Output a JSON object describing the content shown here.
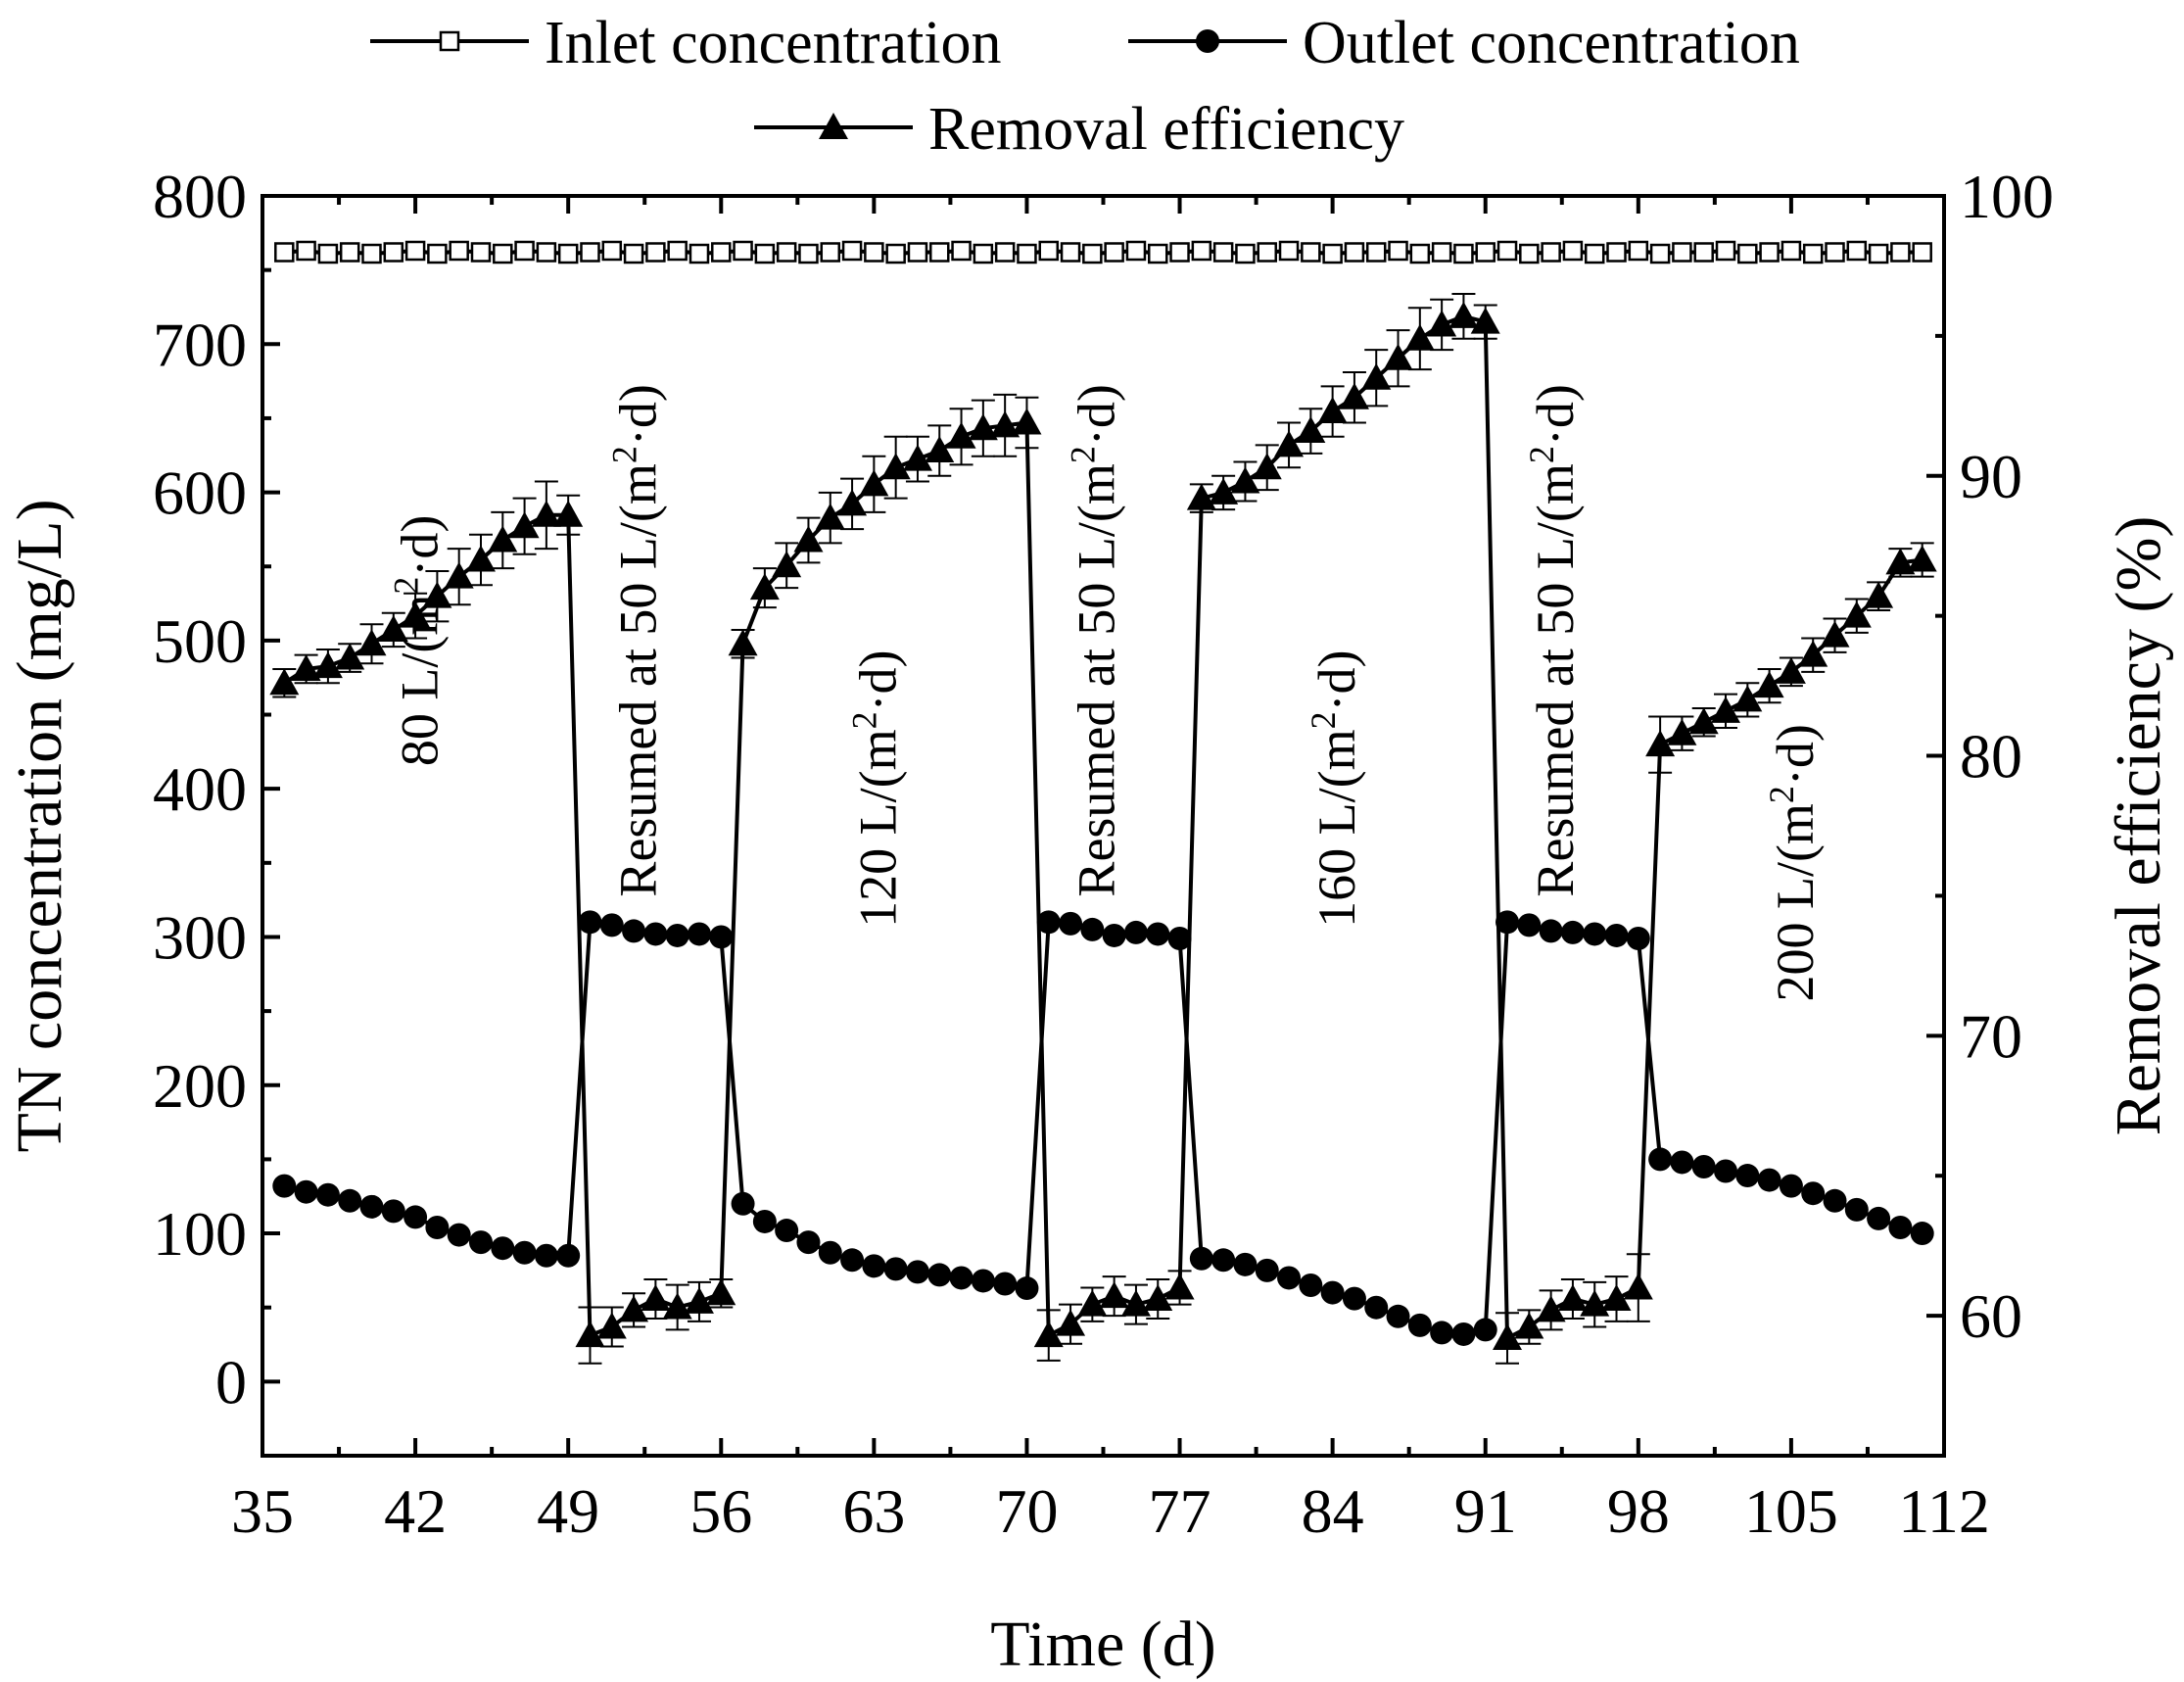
{
  "chart_data": {
    "type": "line",
    "title": "",
    "xlabel": "Time (d)",
    "ylabel": "TN concentration (mg/L)",
    "y2label": "Removal efficiency (%)",
    "xlim": [
      35,
      112
    ],
    "ylim": [
      -50,
      800
    ],
    "y2lim": [
      55,
      100
    ],
    "xticks": [
      35,
      42,
      49,
      56,
      63,
      70,
      77,
      84,
      91,
      98,
      105,
      112
    ],
    "yticks": [
      0,
      100,
      200,
      300,
      400,
      500,
      600,
      700,
      800
    ],
    "y2ticks": [
      60,
      70,
      80,
      90,
      100
    ],
    "legend": [
      {
        "name": "Inlet concentration",
        "marker": "open-square"
      },
      {
        "name": "Outlet concentration",
        "marker": "filled-circle"
      },
      {
        "name": "Removal efficiency",
        "marker": "filled-triangle"
      }
    ],
    "annotations": [
      {
        "text": "80 L/(m",
        "sup": "2",
        "tail": "·d)",
        "x": 43,
        "y": 500
      },
      {
        "text": "Resumed at 50 L/(m",
        "sup": "2",
        "tail": "·d)",
        "x": 53,
        "y": 500
      },
      {
        "text": "120 L/(m",
        "sup": "2",
        "tail": "·d)",
        "x": 64,
        "y": 400
      },
      {
        "text": "Resumed at 50 L/(m",
        "sup": "2",
        "tail": "·d)",
        "x": 74,
        "y": 500
      },
      {
        "text": "160 L/(m",
        "sup": "2",
        "tail": "·d)",
        "x": 85,
        "y": 400
      },
      {
        "text": "Resumed at 50 L/(m",
        "sup": "2",
        "tail": "·d)",
        "x": 95,
        "y": 500
      },
      {
        "text": "200 L/(m",
        "sup": "2",
        "tail": "·d)",
        "x": 106,
        "y": 350
      }
    ],
    "series": [
      {
        "name": "Inlet concentration",
        "axis": "left",
        "x": [
          36,
          37,
          38,
          39,
          40,
          41,
          42,
          43,
          44,
          45,
          46,
          47,
          48,
          49,
          50,
          51,
          52,
          53,
          54,
          55,
          56,
          57,
          58,
          59,
          60,
          61,
          62,
          63,
          64,
          65,
          66,
          67,
          68,
          69,
          70,
          71,
          72,
          73,
          74,
          75,
          76,
          77,
          78,
          79,
          80,
          81,
          82,
          83,
          84,
          85,
          86,
          87,
          88,
          89,
          90,
          91,
          92,
          93,
          94,
          95,
          96,
          97,
          98,
          99,
          100,
          101,
          102,
          103,
          104,
          105,
          106,
          107,
          108,
          109,
          110,
          111
        ],
        "y": [
          762,
          763,
          761,
          762,
          761,
          762,
          763,
          761,
          763,
          762,
          761,
          763,
          762,
          761,
          762,
          763,
          761,
          762,
          763,
          761,
          762,
          763,
          761,
          762,
          761,
          762,
          763,
          762,
          761,
          762,
          762,
          763,
          761,
          762,
          761,
          763,
          762,
          761,
          762,
          763,
          761,
          762,
          763,
          762,
          761,
          762,
          763,
          762,
          761,
          762,
          762,
          763,
          761,
          762,
          761,
          762,
          763,
          761,
          762,
          763,
          761,
          762,
          763,
          761,
          762,
          762,
          763,
          761,
          762,
          763,
          761,
          762,
          763,
          761,
          762,
          762
        ]
      },
      {
        "name": "Outlet concentration",
        "axis": "left",
        "x": [
          36,
          37,
          38,
          39,
          40,
          41,
          42,
          43,
          44,
          45,
          46,
          47,
          48,
          49,
          50,
          51,
          52,
          53,
          54,
          55,
          56,
          57,
          58,
          59,
          60,
          61,
          62,
          63,
          64,
          65,
          66,
          67,
          68,
          69,
          70,
          71,
          72,
          73,
          74,
          75,
          76,
          77,
          78,
          79,
          80,
          81,
          82,
          83,
          84,
          85,
          86,
          87,
          88,
          89,
          90,
          91,
          92,
          93,
          94,
          95,
          96,
          97,
          98,
          99,
          100,
          101,
          102,
          103,
          104,
          105,
          106,
          107,
          108,
          109,
          110,
          111
        ],
        "y": [
          132,
          128,
          126,
          122,
          118,
          115,
          111,
          104,
          99,
          94,
          90,
          87,
          85,
          85,
          310,
          308,
          304,
          302,
          301,
          302,
          300,
          120,
          108,
          102,
          94,
          87,
          82,
          78,
          76,
          74,
          72,
          70,
          68,
          66,
          63,
          310,
          309,
          305,
          301,
          303,
          302,
          299,
          83,
          82,
          79,
          75,
          70,
          65,
          60,
          56,
          50,
          44,
          38,
          33,
          32,
          35,
          310,
          308,
          304,
          303,
          302,
          301,
          299,
          150,
          148,
          145,
          142,
          139,
          136,
          132,
          127,
          122,
          116,
          110,
          104,
          100
        ],
        "err": [
          0,
          0,
          0,
          0,
          0,
          0,
          0,
          0,
          0,
          0,
          0,
          0,
          0,
          0,
          0,
          0,
          0,
          0,
          0,
          0,
          0,
          0,
          0,
          0,
          0,
          0,
          0,
          0,
          0,
          0,
          0,
          0,
          0,
          0,
          0,
          0,
          0,
          0,
          0,
          0,
          0,
          0,
          0,
          0,
          0,
          0,
          0,
          0,
          0,
          0,
          0,
          0,
          0,
          0,
          0,
          0,
          0,
          0,
          0,
          0,
          0,
          0,
          0,
          0,
          0,
          0,
          0,
          0,
          0,
          0,
          0,
          0,
          0,
          0,
          0,
          0
        ]
      },
      {
        "name": "Removal efficiency",
        "axis": "right",
        "x": [
          36,
          37,
          38,
          39,
          40,
          41,
          42,
          43,
          44,
          45,
          46,
          47,
          48,
          49,
          50,
          51,
          52,
          53,
          54,
          55,
          56,
          57,
          58,
          59,
          60,
          61,
          62,
          63,
          64,
          65,
          66,
          67,
          68,
          69,
          70,
          71,
          72,
          73,
          74,
          75,
          76,
          77,
          78,
          79,
          80,
          81,
          82,
          83,
          84,
          85,
          86,
          87,
          88,
          89,
          90,
          91,
          92,
          93,
          94,
          95,
          96,
          97,
          98,
          99,
          100,
          101,
          102,
          103,
          104,
          105,
          106,
          107,
          108,
          109,
          110,
          111
        ],
        "y": [
          82.6,
          83.1,
          83.2,
          83.5,
          84.0,
          84.5,
          85.0,
          85.7,
          86.4,
          87.0,
          87.7,
          88.2,
          88.6,
          88.6,
          59.3,
          59.6,
          60.2,
          60.6,
          60.3,
          60.5,
          60.8,
          84.0,
          86.0,
          86.8,
          87.7,
          88.5,
          89.0,
          89.7,
          90.3,
          90.6,
          90.9,
          91.4,
          91.7,
          91.8,
          91.9,
          59.3,
          59.7,
          60.4,
          60.7,
          60.4,
          60.6,
          61.0,
          89.2,
          89.4,
          89.8,
          90.3,
          91.1,
          91.6,
          92.3,
          92.8,
          93.5,
          94.2,
          94.9,
          95.4,
          95.7,
          95.5,
          59.2,
          59.6,
          60.2,
          60.6,
          60.4,
          60.6,
          61.0,
          80.4,
          80.8,
          81.2,
          81.6,
          82.0,
          82.5,
          83.0,
          83.6,
          84.3,
          85.0,
          85.7,
          86.9,
          87.0
        ],
        "err": [
          0.5,
          0.5,
          0.6,
          0.5,
          0.7,
          0.6,
          0.8,
          0.9,
          1.0,
          0.9,
          1.0,
          1.0,
          1.2,
          0.7,
          1.0,
          0.7,
          0.6,
          0.7,
          0.8,
          0.7,
          0.5,
          0.5,
          0.7,
          0.8,
          0.8,
          0.9,
          0.9,
          1.0,
          1.1,
          0.8,
          0.9,
          1.0,
          1.0,
          1.1,
          0.9,
          0.9,
          0.7,
          0.6,
          0.7,
          0.7,
          0.7,
          0.6,
          0.5,
          0.6,
          0.7,
          0.8,
          0.8,
          0.8,
          0.9,
          0.9,
          1.0,
          1.0,
          1.1,
          0.9,
          0.8,
          0.6,
          0.9,
          0.6,
          0.7,
          0.7,
          0.8,
          0.8,
          1.2,
          1.0,
          0.6,
          0.5,
          0.6,
          0.6,
          0.6,
          0.5,
          0.6,
          0.6,
          0.6,
          0.5,
          0.5,
          0.6
        ]
      }
    ]
  }
}
